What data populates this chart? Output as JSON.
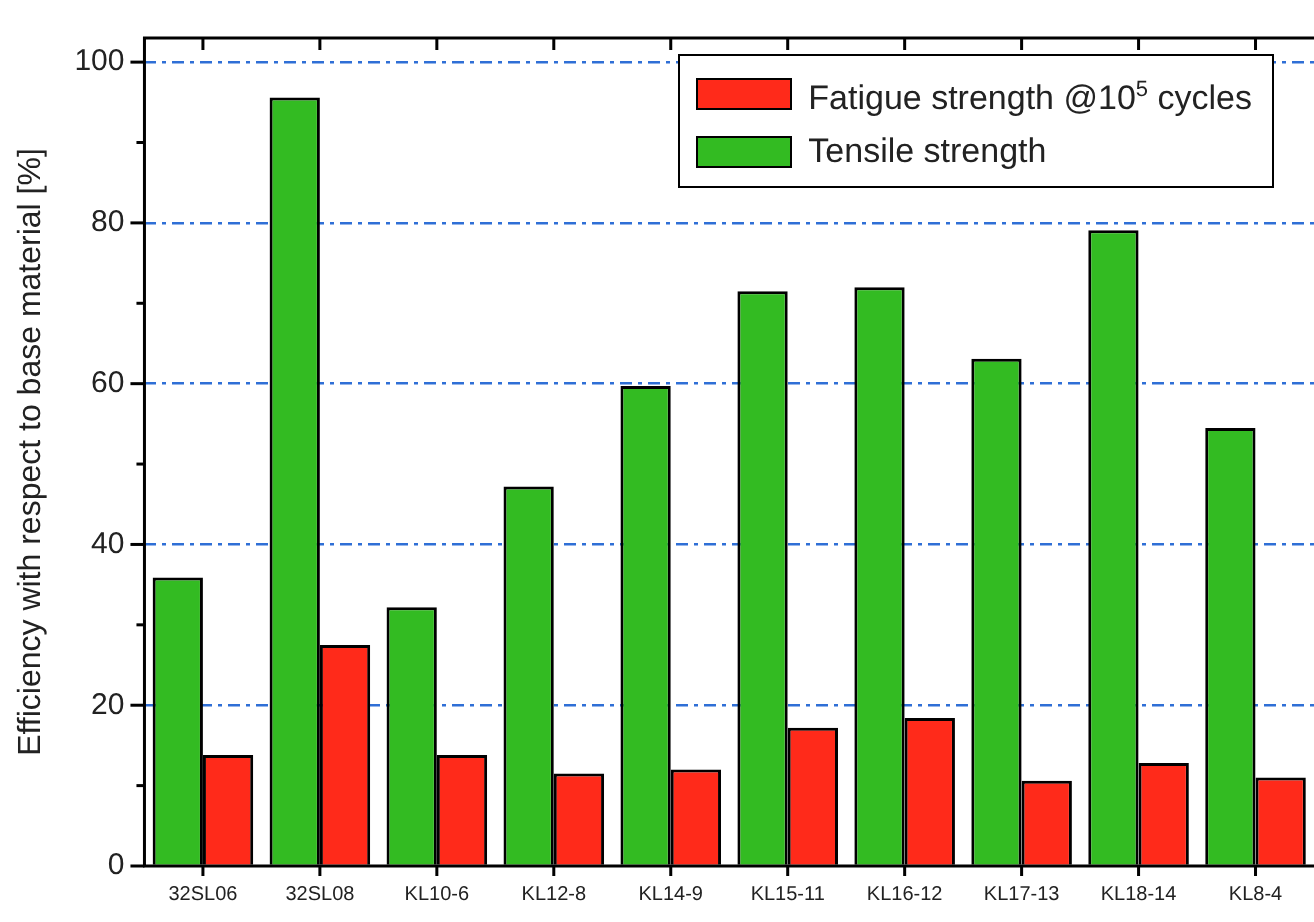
{
  "chart_data": {
    "type": "bar",
    "ylabel": "Efficiency with respect to base material [%]",
    "categories": [
      "32SL06",
      "32SL08",
      "KL10-6",
      "KL12-8",
      "KL14-9",
      "KL15-11",
      "KL16-12",
      "KL17-13",
      "KL18-14",
      "KL8-4"
    ],
    "series": [
      {
        "name": "Tensile strength",
        "color": "#33bb22",
        "values": [
          35.9,
          95.6,
          32.2,
          47.2,
          59.7,
          71.5,
          72,
          63.1,
          79.1,
          54.5
        ]
      },
      {
        "name": "Fatigue strength @10$^{5}$ cycles",
        "color": "#ff2a1a",
        "values": [
          13.8,
          27.5,
          13.8,
          11.5,
          12,
          17.2,
          18.4,
          10.6,
          12.8,
          11
        ]
      }
    ],
    "ylim": [
      0,
      103
    ],
    "yticks": [
      0,
      {
        "value": 10,
        "label": null
      },
      20,
      {
        "value": 30,
        "label": null
      },
      40,
      {
        "value": 50,
        "label": null
      },
      60,
      {
        "value": 70,
        "label": null
      },
      80,
      {
        "value": 90,
        "label": null
      },
      100
    ],
    "grid": "y",
    "legend": "top right"
  }
}
